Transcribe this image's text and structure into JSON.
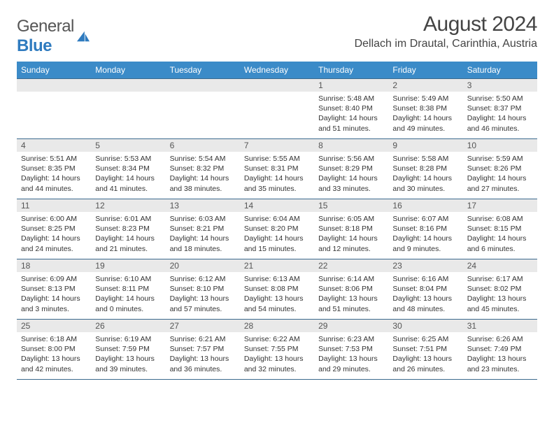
{
  "logo": {
    "text1": "General",
    "text2": "Blue"
  },
  "title": "August 2024",
  "location": "Dellach im Drautal, Carinthia, Austria",
  "colors": {
    "header_bg": "#3b8bc8",
    "header_fg": "#ffffff",
    "rule": "#3b6a8e",
    "daynum_bg": "#e9e9e9",
    "logo_blue": "#2f7bbf"
  },
  "weekdays": [
    "Sunday",
    "Monday",
    "Tuesday",
    "Wednesday",
    "Thursday",
    "Friday",
    "Saturday"
  ],
  "weeks": [
    [
      null,
      null,
      null,
      null,
      {
        "n": "1",
        "sr": "5:48 AM",
        "ss": "8:40 PM",
        "dl": "14 hours and 51 minutes."
      },
      {
        "n": "2",
        "sr": "5:49 AM",
        "ss": "8:38 PM",
        "dl": "14 hours and 49 minutes."
      },
      {
        "n": "3",
        "sr": "5:50 AM",
        "ss": "8:37 PM",
        "dl": "14 hours and 46 minutes."
      }
    ],
    [
      {
        "n": "4",
        "sr": "5:51 AM",
        "ss": "8:35 PM",
        "dl": "14 hours and 44 minutes."
      },
      {
        "n": "5",
        "sr": "5:53 AM",
        "ss": "8:34 PM",
        "dl": "14 hours and 41 minutes."
      },
      {
        "n": "6",
        "sr": "5:54 AM",
        "ss": "8:32 PM",
        "dl": "14 hours and 38 minutes."
      },
      {
        "n": "7",
        "sr": "5:55 AM",
        "ss": "8:31 PM",
        "dl": "14 hours and 35 minutes."
      },
      {
        "n": "8",
        "sr": "5:56 AM",
        "ss": "8:29 PM",
        "dl": "14 hours and 33 minutes."
      },
      {
        "n": "9",
        "sr": "5:58 AM",
        "ss": "8:28 PM",
        "dl": "14 hours and 30 minutes."
      },
      {
        "n": "10",
        "sr": "5:59 AM",
        "ss": "8:26 PM",
        "dl": "14 hours and 27 minutes."
      }
    ],
    [
      {
        "n": "11",
        "sr": "6:00 AM",
        "ss": "8:25 PM",
        "dl": "14 hours and 24 minutes."
      },
      {
        "n": "12",
        "sr": "6:01 AM",
        "ss": "8:23 PM",
        "dl": "14 hours and 21 minutes."
      },
      {
        "n": "13",
        "sr": "6:03 AM",
        "ss": "8:21 PM",
        "dl": "14 hours and 18 minutes."
      },
      {
        "n": "14",
        "sr": "6:04 AM",
        "ss": "8:20 PM",
        "dl": "14 hours and 15 minutes."
      },
      {
        "n": "15",
        "sr": "6:05 AM",
        "ss": "8:18 PM",
        "dl": "14 hours and 12 minutes."
      },
      {
        "n": "16",
        "sr": "6:07 AM",
        "ss": "8:16 PM",
        "dl": "14 hours and 9 minutes."
      },
      {
        "n": "17",
        "sr": "6:08 AM",
        "ss": "8:15 PM",
        "dl": "14 hours and 6 minutes."
      }
    ],
    [
      {
        "n": "18",
        "sr": "6:09 AM",
        "ss": "8:13 PM",
        "dl": "14 hours and 3 minutes."
      },
      {
        "n": "19",
        "sr": "6:10 AM",
        "ss": "8:11 PM",
        "dl": "14 hours and 0 minutes."
      },
      {
        "n": "20",
        "sr": "6:12 AM",
        "ss": "8:10 PM",
        "dl": "13 hours and 57 minutes."
      },
      {
        "n": "21",
        "sr": "6:13 AM",
        "ss": "8:08 PM",
        "dl": "13 hours and 54 minutes."
      },
      {
        "n": "22",
        "sr": "6:14 AM",
        "ss": "8:06 PM",
        "dl": "13 hours and 51 minutes."
      },
      {
        "n": "23",
        "sr": "6:16 AM",
        "ss": "8:04 PM",
        "dl": "13 hours and 48 minutes."
      },
      {
        "n": "24",
        "sr": "6:17 AM",
        "ss": "8:02 PM",
        "dl": "13 hours and 45 minutes."
      }
    ],
    [
      {
        "n": "25",
        "sr": "6:18 AM",
        "ss": "8:00 PM",
        "dl": "13 hours and 42 minutes."
      },
      {
        "n": "26",
        "sr": "6:19 AM",
        "ss": "7:59 PM",
        "dl": "13 hours and 39 minutes."
      },
      {
        "n": "27",
        "sr": "6:21 AM",
        "ss": "7:57 PM",
        "dl": "13 hours and 36 minutes."
      },
      {
        "n": "28",
        "sr": "6:22 AM",
        "ss": "7:55 PM",
        "dl": "13 hours and 32 minutes."
      },
      {
        "n": "29",
        "sr": "6:23 AM",
        "ss": "7:53 PM",
        "dl": "13 hours and 29 minutes."
      },
      {
        "n": "30",
        "sr": "6:25 AM",
        "ss": "7:51 PM",
        "dl": "13 hours and 26 minutes."
      },
      {
        "n": "31",
        "sr": "6:26 AM",
        "ss": "7:49 PM",
        "dl": "13 hours and 23 minutes."
      }
    ]
  ]
}
